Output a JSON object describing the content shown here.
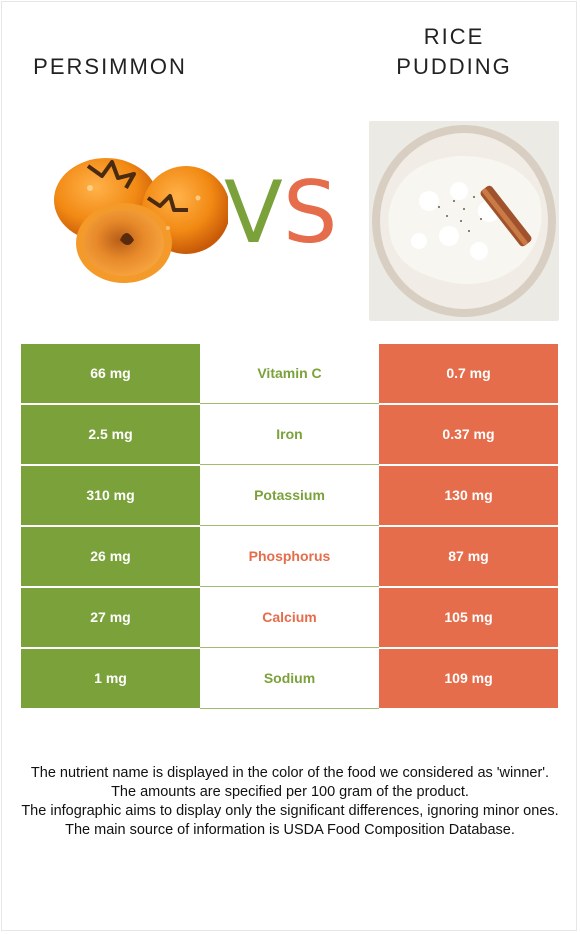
{
  "foods": {
    "left": {
      "name": "PERSIMMON"
    },
    "right": {
      "name": "RICE\nPUDDING"
    }
  },
  "vs": {
    "v": "V",
    "s": "S"
  },
  "colors": {
    "left_winner": "#7ba23a",
    "right_winner": "#e56d4b"
  },
  "rows": [
    {
      "left": "66 mg",
      "nutrient": "Vitamin C",
      "right": "0.7 mg",
      "winner": "left"
    },
    {
      "left": "2.5 mg",
      "nutrient": "Iron",
      "right": "0.37 mg",
      "winner": "left"
    },
    {
      "left": "310 mg",
      "nutrient": "Potassium",
      "right": "130 mg",
      "winner": "left"
    },
    {
      "left": "26 mg",
      "nutrient": "Phosphorus",
      "right": "87 mg",
      "winner": "right"
    },
    {
      "left": "27 mg",
      "nutrient": "Calcium",
      "right": "105 mg",
      "winner": "right"
    },
    {
      "left": "1 mg",
      "nutrient": "Sodium",
      "right": "109 mg",
      "winner": "left"
    }
  ],
  "footer": [
    "The nutrient name is displayed in the color of the food we considered as 'winner'.",
    "The amounts are specified per 100 gram of the product.",
    "The infographic aims to display only the significant differences, ignoring minor ones.",
    "The main source of information is USDA Food Composition Database."
  ]
}
